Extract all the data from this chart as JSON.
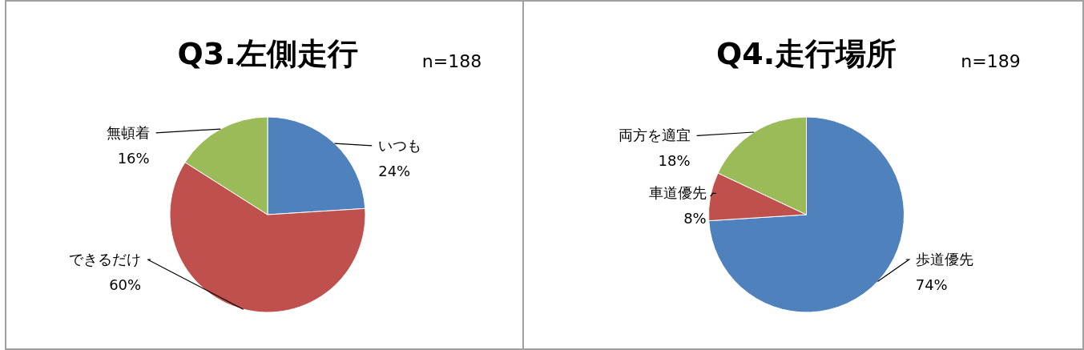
{
  "chart_data": [
    {
      "type": "pie",
      "title": "Q3.左側走行",
      "annotations": [
        "n=188"
      ],
      "categories": [
        "いつも",
        "できるだけ",
        "無頓着"
      ],
      "values": [
        24,
        60,
        16
      ],
      "value_labels": [
        "24%",
        "60%",
        "16%"
      ],
      "colors": [
        "#4f81bd",
        "#c0504d",
        "#9bbb59"
      ]
    },
    {
      "type": "pie",
      "title": "Q4.走行場所",
      "annotations": [
        "n=189"
      ],
      "categories": [
        "歩道優先",
        "車道優先",
        "両方を適宜"
      ],
      "values": [
        74,
        8,
        18
      ],
      "value_labels": [
        "74%",
        "8%",
        "18%"
      ],
      "colors": [
        "#4f81bd",
        "#c0504d",
        "#9bbb59"
      ]
    }
  ]
}
